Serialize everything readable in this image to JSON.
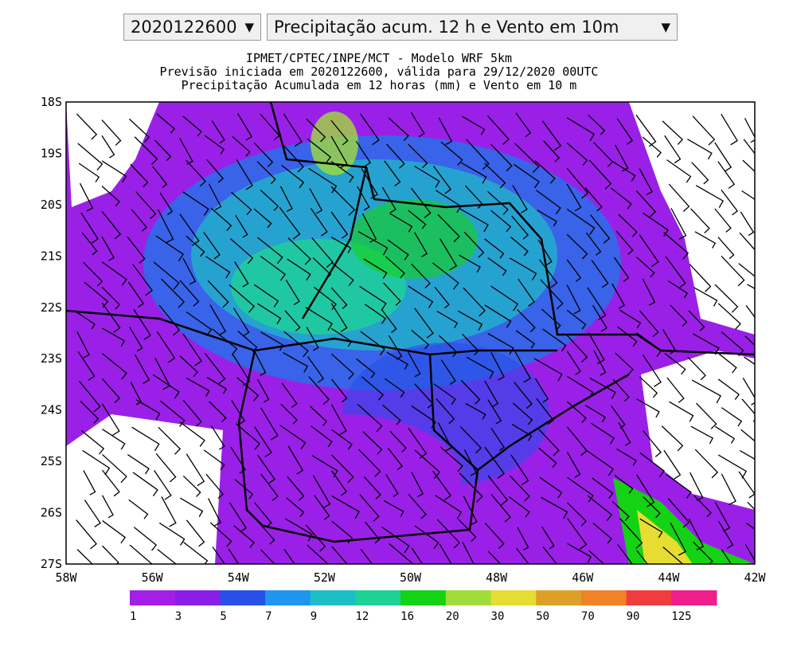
{
  "controls": {
    "run": "2020122600",
    "product": "Precipitação acum. 12 h e Vento em 10m"
  },
  "map": {
    "title_lines": [
      "IPMET/CPTEC/INPE/MCT - Modelo WRF 5km",
      "Previsão iniciada em 2020122600, válida para 29/12/2020 00UTC",
      "Precipitação Acumulada em 12 horas (mm) e Vento em 10 m"
    ],
    "lat_labels": [
      "18S",
      "19S",
      "20S",
      "21S",
      "22S",
      "23S",
      "24S",
      "25S",
      "26S",
      "27S"
    ],
    "lon_labels": [
      "58W",
      "56W",
      "54W",
      "52W",
      "50W",
      "48W",
      "46W",
      "44W",
      "42W"
    ]
  },
  "colorbar": {
    "labels": [
      1,
      3,
      5,
      7,
      9,
      12,
      16,
      20,
      30,
      50,
      70,
      90,
      125
    ],
    "colors": [
      "#a41ee8",
      "#8a1ee8",
      "#2850e8",
      "#1e96f0",
      "#1ebec8",
      "#1ed296",
      "#14d214",
      "#a0dc3c",
      "#e6dc32",
      "#dca028",
      "#f08228",
      "#f03c3c",
      "#f01e8c"
    ]
  }
}
